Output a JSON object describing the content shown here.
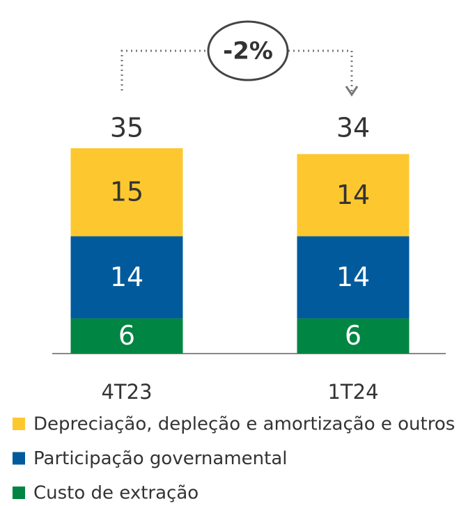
{
  "chart_data": {
    "type": "stacked_bar",
    "annotation": "-2%",
    "categories": [
      "4T23",
      "1T24"
    ],
    "totals": [
      35,
      34
    ],
    "series": [
      {
        "name": "Custo de extração",
        "color": "#008542",
        "values": [
          6,
          6
        ]
      },
      {
        "name": "Participação governamental",
        "color": "#005a9c",
        "values": [
          14,
          14
        ]
      },
      {
        "name": "Depreciação, depleção e amortização e outros",
        "color": "#fdc82f",
        "values": [
          15,
          14
        ]
      }
    ]
  }
}
